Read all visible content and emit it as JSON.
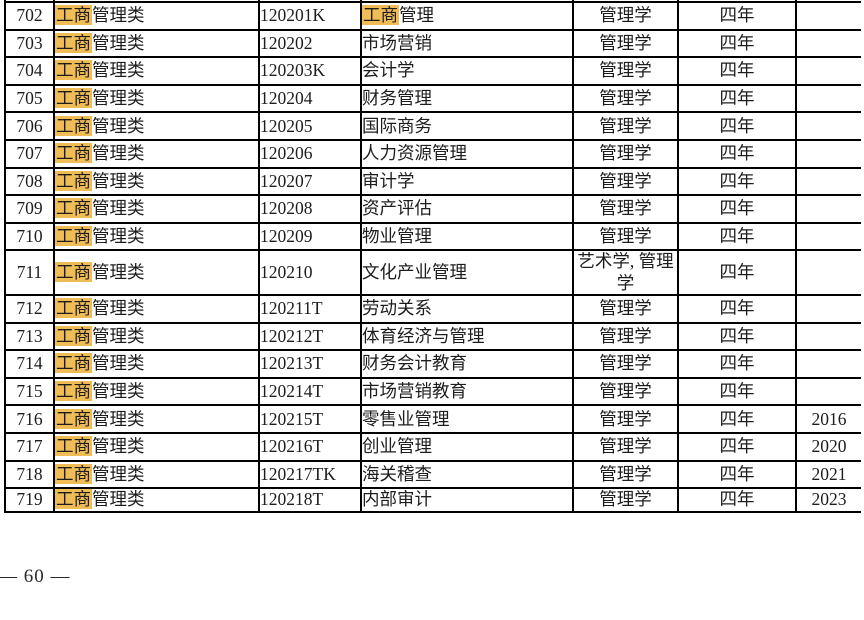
{
  "document": {
    "footer_page_number": "— 60 —",
    "search": {
      "term": "工商",
      "highlight_color": "#F0BC55"
    },
    "table": {
      "columns": [
        {
          "key": "no",
          "name": "row-number"
        },
        {
          "key": "category",
          "name": "category"
        },
        {
          "key": "code",
          "name": "code"
        },
        {
          "key": "major",
          "name": "major"
        },
        {
          "key": "degree",
          "name": "degree"
        },
        {
          "key": "duration",
          "name": "duration"
        },
        {
          "key": "year",
          "name": "year"
        }
      ],
      "rows": [
        {
          "no": "702",
          "category": "工商管理类",
          "code": "120201K",
          "major": "工商管理",
          "degree": "管理学",
          "duration": "四年",
          "year": ""
        },
        {
          "no": "703",
          "category": "工商管理类",
          "code": "120202",
          "major": "市场营销",
          "degree": "管理学",
          "duration": "四年",
          "year": ""
        },
        {
          "no": "704",
          "category": "工商管理类",
          "code": "120203K",
          "major": "会计学",
          "degree": "管理学",
          "duration": "四年",
          "year": ""
        },
        {
          "no": "705",
          "category": "工商管理类",
          "code": "120204",
          "major": "财务管理",
          "degree": "管理学",
          "duration": "四年",
          "year": ""
        },
        {
          "no": "706",
          "category": "工商管理类",
          "code": "120205",
          "major": "国际商务",
          "degree": "管理学",
          "duration": "四年",
          "year": ""
        },
        {
          "no": "707",
          "category": "工商管理类",
          "code": "120206",
          "major": "人力资源管理",
          "degree": "管理学",
          "duration": "四年",
          "year": ""
        },
        {
          "no": "708",
          "category": "工商管理类",
          "code": "120207",
          "major": "审计学",
          "degree": "管理学",
          "duration": "四年",
          "year": ""
        },
        {
          "no": "709",
          "category": "工商管理类",
          "code": "120208",
          "major": "资产评估",
          "degree": "管理学",
          "duration": "四年",
          "year": ""
        },
        {
          "no": "710",
          "category": "工商管理类",
          "code": "120209",
          "major": "物业管理",
          "degree": "管理学",
          "duration": "四年",
          "year": ""
        },
        {
          "no": "711",
          "category": "工商管理类",
          "code": "120210",
          "major": "文化产业管理",
          "degree": "艺术学, 管理学",
          "duration": "四年",
          "year": ""
        },
        {
          "no": "712",
          "category": "工商管理类",
          "code": "120211T",
          "major": "劳动关系",
          "degree": "管理学",
          "duration": "四年",
          "year": ""
        },
        {
          "no": "713",
          "category": "工商管理类",
          "code": "120212T",
          "major": "体育经济与管理",
          "degree": "管理学",
          "duration": "四年",
          "year": ""
        },
        {
          "no": "714",
          "category": "工商管理类",
          "code": "120213T",
          "major": "财务会计教育",
          "degree": "管理学",
          "duration": "四年",
          "year": ""
        },
        {
          "no": "715",
          "category": "工商管理类",
          "code": "120214T",
          "major": "市场营销教育",
          "degree": "管理学",
          "duration": "四年",
          "year": ""
        },
        {
          "no": "716",
          "category": "工商管理类",
          "code": "120215T",
          "major": "零售业管理",
          "degree": "管理学",
          "duration": "四年",
          "year": "2016"
        },
        {
          "no": "717",
          "category": "工商管理类",
          "code": "120216T",
          "major": "创业管理",
          "degree": "管理学",
          "duration": "四年",
          "year": "2020"
        },
        {
          "no": "718",
          "category": "工商管理类",
          "code": "120217TK",
          "major": "海关稽查",
          "degree": "管理学",
          "duration": "四年",
          "year": "2021"
        },
        {
          "no": "719",
          "category": "工商管理类",
          "code": "120218T",
          "major": "内部审计",
          "degree": "管理学",
          "duration": "四年",
          "year": "2023"
        }
      ]
    }
  }
}
